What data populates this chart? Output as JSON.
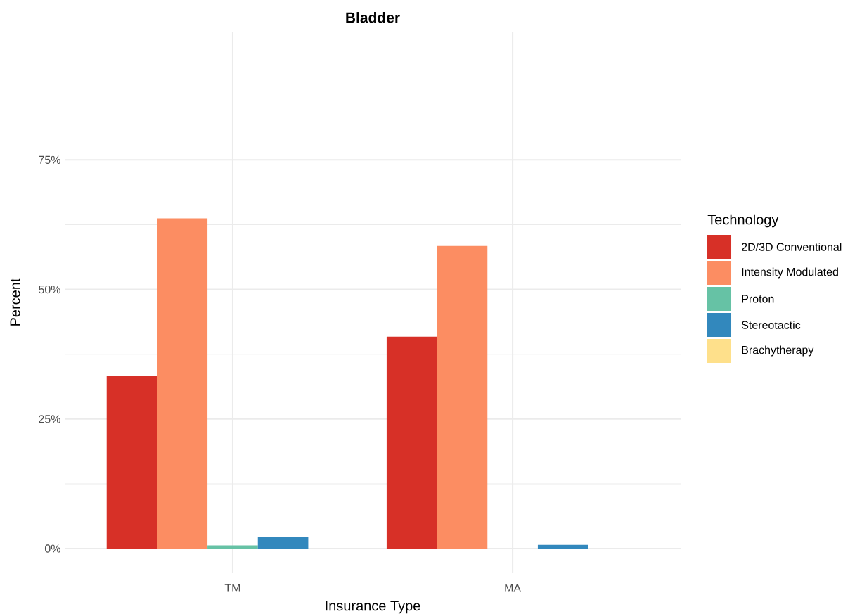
{
  "chart_data": {
    "type": "bar",
    "title": "Bladder",
    "xlabel": "Insurance Type",
    "ylabel": "Percent",
    "legend_title": "Technology",
    "categories": [
      "TM",
      "MA"
    ],
    "series": [
      {
        "name": "2D/3D Conventional",
        "color": "#d73027",
        "values": [
          33.4,
          40.9
        ]
      },
      {
        "name": "Intensity Modulated",
        "color": "#fc8d62",
        "values": [
          63.7,
          58.4
        ]
      },
      {
        "name": "Proton",
        "color": "#66c2a5",
        "values": [
          0.6,
          0
        ]
      },
      {
        "name": "Stereotactic",
        "color": "#3288bd",
        "values": [
          2.3,
          0.7
        ]
      },
      {
        "name": "Brachytherapy",
        "color": "#fee08b",
        "values": [
          0,
          0
        ]
      }
    ],
    "ylim": [
      -4.75,
      99.75
    ],
    "yticks": [
      {
        "value": 0,
        "label": "0%"
      },
      {
        "value": 25,
        "label": "25%"
      },
      {
        "value": 50,
        "label": "50%"
      },
      {
        "value": 75,
        "label": "75%"
      }
    ],
    "grid": true,
    "legend": "right"
  }
}
